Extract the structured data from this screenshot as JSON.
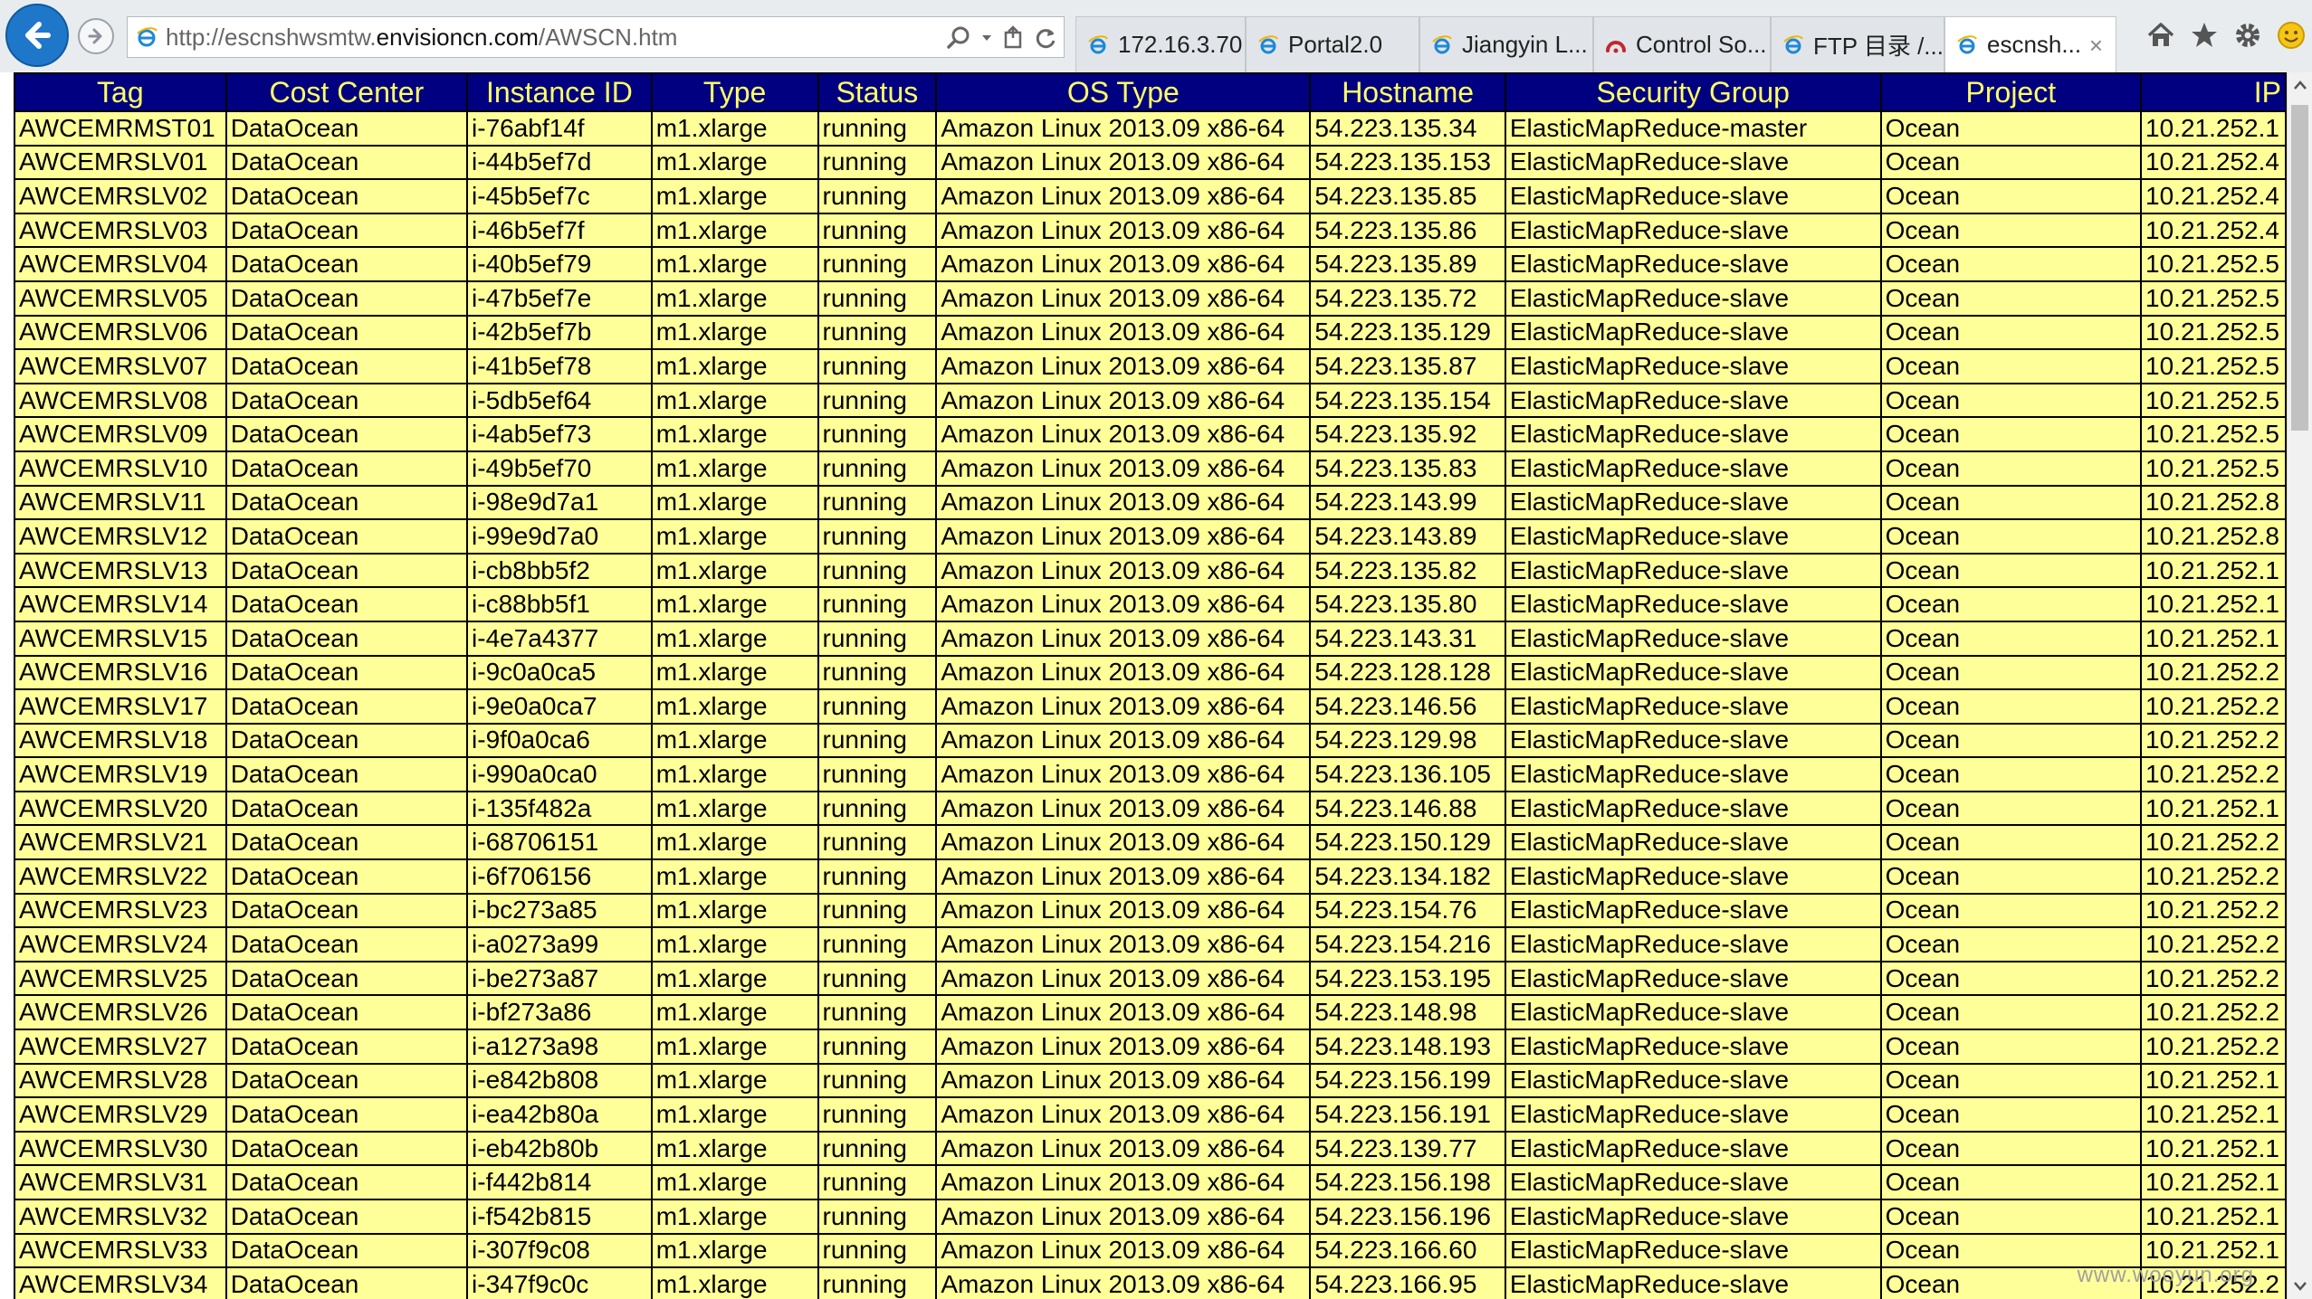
{
  "browser": {
    "address": {
      "prefix": "http://escnshwsmtw.",
      "domain": "envisioncn.com",
      "path": "/AWSCN.htm"
    },
    "tabs": [
      {
        "label": "172.16.3.70",
        "icon": "ie-page-icon",
        "active": false
      },
      {
        "label": "Portal2.0",
        "icon": "ie-page-icon",
        "active": false
      },
      {
        "label": "Jiangyin L...",
        "icon": "ie-page-icon",
        "active": false
      },
      {
        "label": "Control So...",
        "icon": "red-arc-icon",
        "active": false
      },
      {
        "label": "FTP 目录 /...",
        "icon": "ie-page-icon",
        "active": false
      },
      {
        "label": "escnsh...",
        "icon": "ie-page-icon",
        "active": true
      }
    ],
    "tab_close_glyph": "×"
  },
  "table": {
    "headers": [
      "Tag",
      "Cost Center",
      "Instance ID",
      "Type",
      "Status",
      "OS Type",
      "Hostname",
      "Security Group",
      "Project",
      "IP"
    ],
    "rows": [
      [
        "AWCEMRMST01",
        "DataOcean",
        "i-76abf14f",
        "m1.xlarge",
        "running",
        "Amazon Linux 2013.09 x86-64",
        "54.223.135.34",
        "ElasticMapReduce-master",
        "Ocean",
        "10.21.252.1"
      ],
      [
        "AWCEMRSLV01",
        "DataOcean",
        "i-44b5ef7d",
        "m1.xlarge",
        "running",
        "Amazon Linux 2013.09 x86-64",
        "54.223.135.153",
        "ElasticMapReduce-slave",
        "Ocean",
        "10.21.252.4"
      ],
      [
        "AWCEMRSLV02",
        "DataOcean",
        "i-45b5ef7c",
        "m1.xlarge",
        "running",
        "Amazon Linux 2013.09 x86-64",
        "54.223.135.85",
        "ElasticMapReduce-slave",
        "Ocean",
        "10.21.252.4"
      ],
      [
        "AWCEMRSLV03",
        "DataOcean",
        "i-46b5ef7f",
        "m1.xlarge",
        "running",
        "Amazon Linux 2013.09 x86-64",
        "54.223.135.86",
        "ElasticMapReduce-slave",
        "Ocean",
        "10.21.252.4"
      ],
      [
        "AWCEMRSLV04",
        "DataOcean",
        "i-40b5ef79",
        "m1.xlarge",
        "running",
        "Amazon Linux 2013.09 x86-64",
        "54.223.135.89",
        "ElasticMapReduce-slave",
        "Ocean",
        "10.21.252.5"
      ],
      [
        "AWCEMRSLV05",
        "DataOcean",
        "i-47b5ef7e",
        "m1.xlarge",
        "running",
        "Amazon Linux 2013.09 x86-64",
        "54.223.135.72",
        "ElasticMapReduce-slave",
        "Ocean",
        "10.21.252.5"
      ],
      [
        "AWCEMRSLV06",
        "DataOcean",
        "i-42b5ef7b",
        "m1.xlarge",
        "running",
        "Amazon Linux 2013.09 x86-64",
        "54.223.135.129",
        "ElasticMapReduce-slave",
        "Ocean",
        "10.21.252.5"
      ],
      [
        "AWCEMRSLV07",
        "DataOcean",
        "i-41b5ef78",
        "m1.xlarge",
        "running",
        "Amazon Linux 2013.09 x86-64",
        "54.223.135.87",
        "ElasticMapReduce-slave",
        "Ocean",
        "10.21.252.5"
      ],
      [
        "AWCEMRSLV08",
        "DataOcean",
        "i-5db5ef64",
        "m1.xlarge",
        "running",
        "Amazon Linux 2013.09 x86-64",
        "54.223.135.154",
        "ElasticMapReduce-slave",
        "Ocean",
        "10.21.252.5"
      ],
      [
        "AWCEMRSLV09",
        "DataOcean",
        "i-4ab5ef73",
        "m1.xlarge",
        "running",
        "Amazon Linux 2013.09 x86-64",
        "54.223.135.92",
        "ElasticMapReduce-slave",
        "Ocean",
        "10.21.252.5"
      ],
      [
        "AWCEMRSLV10",
        "DataOcean",
        "i-49b5ef70",
        "m1.xlarge",
        "running",
        "Amazon Linux 2013.09 x86-64",
        "54.223.135.83",
        "ElasticMapReduce-slave",
        "Ocean",
        "10.21.252.5"
      ],
      [
        "AWCEMRSLV11",
        "DataOcean",
        "i-98e9d7a1",
        "m1.xlarge",
        "running",
        "Amazon Linux 2013.09 x86-64",
        "54.223.143.99",
        "ElasticMapReduce-slave",
        "Ocean",
        "10.21.252.8"
      ],
      [
        "AWCEMRSLV12",
        "DataOcean",
        "i-99e9d7a0",
        "m1.xlarge",
        "running",
        "Amazon Linux 2013.09 x86-64",
        "54.223.143.89",
        "ElasticMapReduce-slave",
        "Ocean",
        "10.21.252.8"
      ],
      [
        "AWCEMRSLV13",
        "DataOcean",
        "i-cb8bb5f2",
        "m1.xlarge",
        "running",
        "Amazon Linux 2013.09 x86-64",
        "54.223.135.82",
        "ElasticMapReduce-slave",
        "Ocean",
        "10.21.252.1"
      ],
      [
        "AWCEMRSLV14",
        "DataOcean",
        "i-c88bb5f1",
        "m1.xlarge",
        "running",
        "Amazon Linux 2013.09 x86-64",
        "54.223.135.80",
        "ElasticMapReduce-slave",
        "Ocean",
        "10.21.252.1"
      ],
      [
        "AWCEMRSLV15",
        "DataOcean",
        "i-4e7a4377",
        "m1.xlarge",
        "running",
        "Amazon Linux 2013.09 x86-64",
        "54.223.143.31",
        "ElasticMapReduce-slave",
        "Ocean",
        "10.21.252.1"
      ],
      [
        "AWCEMRSLV16",
        "DataOcean",
        "i-9c0a0ca5",
        "m1.xlarge",
        "running",
        "Amazon Linux 2013.09 x86-64",
        "54.223.128.128",
        "ElasticMapReduce-slave",
        "Ocean",
        "10.21.252.2"
      ],
      [
        "AWCEMRSLV17",
        "DataOcean",
        "i-9e0a0ca7",
        "m1.xlarge",
        "running",
        "Amazon Linux 2013.09 x86-64",
        "54.223.146.56",
        "ElasticMapReduce-slave",
        "Ocean",
        "10.21.252.2"
      ],
      [
        "AWCEMRSLV18",
        "DataOcean",
        "i-9f0a0ca6",
        "m1.xlarge",
        "running",
        "Amazon Linux 2013.09 x86-64",
        "54.223.129.98",
        "ElasticMapReduce-slave",
        "Ocean",
        "10.21.252.2"
      ],
      [
        "AWCEMRSLV19",
        "DataOcean",
        "i-990a0ca0",
        "m1.xlarge",
        "running",
        "Amazon Linux 2013.09 x86-64",
        "54.223.136.105",
        "ElasticMapReduce-slave",
        "Ocean",
        "10.21.252.2"
      ],
      [
        "AWCEMRSLV20",
        "DataOcean",
        "i-135f482a",
        "m1.xlarge",
        "running",
        "Amazon Linux 2013.09 x86-64",
        "54.223.146.88",
        "ElasticMapReduce-slave",
        "Ocean",
        "10.21.252.1"
      ],
      [
        "AWCEMRSLV21",
        "DataOcean",
        "i-68706151",
        "m1.xlarge",
        "running",
        "Amazon Linux 2013.09 x86-64",
        "54.223.150.129",
        "ElasticMapReduce-slave",
        "Ocean",
        "10.21.252.2"
      ],
      [
        "AWCEMRSLV22",
        "DataOcean",
        "i-6f706156",
        "m1.xlarge",
        "running",
        "Amazon Linux 2013.09 x86-64",
        "54.223.134.182",
        "ElasticMapReduce-slave",
        "Ocean",
        "10.21.252.2"
      ],
      [
        "AWCEMRSLV23",
        "DataOcean",
        "i-bc273a85",
        "m1.xlarge",
        "running",
        "Amazon Linux 2013.09 x86-64",
        "54.223.154.76",
        "ElasticMapReduce-slave",
        "Ocean",
        "10.21.252.2"
      ],
      [
        "AWCEMRSLV24",
        "DataOcean",
        "i-a0273a99",
        "m1.xlarge",
        "running",
        "Amazon Linux 2013.09 x86-64",
        "54.223.154.216",
        "ElasticMapReduce-slave",
        "Ocean",
        "10.21.252.2"
      ],
      [
        "AWCEMRSLV25",
        "DataOcean",
        "i-be273a87",
        "m1.xlarge",
        "running",
        "Amazon Linux 2013.09 x86-64",
        "54.223.153.195",
        "ElasticMapReduce-slave",
        "Ocean",
        "10.21.252.2"
      ],
      [
        "AWCEMRSLV26",
        "DataOcean",
        "i-bf273a86",
        "m1.xlarge",
        "running",
        "Amazon Linux 2013.09 x86-64",
        "54.223.148.98",
        "ElasticMapReduce-slave",
        "Ocean",
        "10.21.252.2"
      ],
      [
        "AWCEMRSLV27",
        "DataOcean",
        "i-a1273a98",
        "m1.xlarge",
        "running",
        "Amazon Linux 2013.09 x86-64",
        "54.223.148.193",
        "ElasticMapReduce-slave",
        "Ocean",
        "10.21.252.2"
      ],
      [
        "AWCEMRSLV28",
        "DataOcean",
        "i-e842b808",
        "m1.xlarge",
        "running",
        "Amazon Linux 2013.09 x86-64",
        "54.223.156.199",
        "ElasticMapReduce-slave",
        "Ocean",
        "10.21.252.1"
      ],
      [
        "AWCEMRSLV29",
        "DataOcean",
        "i-ea42b80a",
        "m1.xlarge",
        "running",
        "Amazon Linux 2013.09 x86-64",
        "54.223.156.191",
        "ElasticMapReduce-slave",
        "Ocean",
        "10.21.252.1"
      ],
      [
        "AWCEMRSLV30",
        "DataOcean",
        "i-eb42b80b",
        "m1.xlarge",
        "running",
        "Amazon Linux 2013.09 x86-64",
        "54.223.139.77",
        "ElasticMapReduce-slave",
        "Ocean",
        "10.21.252.1"
      ],
      [
        "AWCEMRSLV31",
        "DataOcean",
        "i-f442b814",
        "m1.xlarge",
        "running",
        "Amazon Linux 2013.09 x86-64",
        "54.223.156.198",
        "ElasticMapReduce-slave",
        "Ocean",
        "10.21.252.1"
      ],
      [
        "AWCEMRSLV32",
        "DataOcean",
        "i-f542b815",
        "m1.xlarge",
        "running",
        "Amazon Linux 2013.09 x86-64",
        "54.223.156.196",
        "ElasticMapReduce-slave",
        "Ocean",
        "10.21.252.1"
      ],
      [
        "AWCEMRSLV33",
        "DataOcean",
        "i-307f9c08",
        "m1.xlarge",
        "running",
        "Amazon Linux 2013.09 x86-64",
        "54.223.166.60",
        "ElasticMapReduce-slave",
        "Ocean",
        "10.21.252.1"
      ],
      [
        "AWCEMRSLV34",
        "DataOcean",
        "i-347f9c0c",
        "m1.xlarge",
        "running",
        "Amazon Linux 2013.09 x86-64",
        "54.223.166.95",
        "ElasticMapReduce-slave",
        "Ocean",
        "10.21.252.2"
      ]
    ]
  },
  "watermark": "www.wooyun.org",
  "colors": {
    "header_bg": "#000080",
    "header_text": "#ffff66",
    "cell_bg": "#ffff99",
    "back_button": "#1e77c9"
  }
}
